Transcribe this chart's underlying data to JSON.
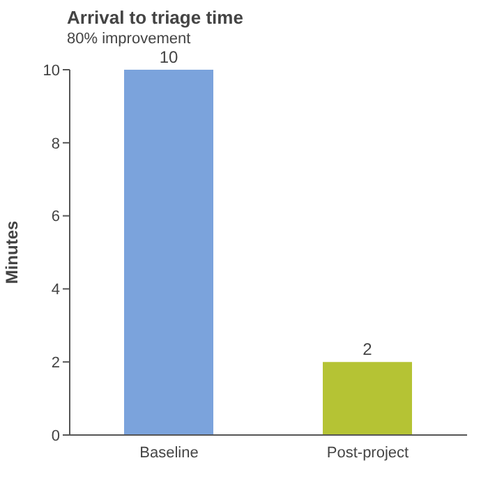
{
  "chart_data": {
    "type": "bar",
    "title": "Arrival to triage time",
    "subtitle": "80% improvement",
    "ylabel": "Minutes",
    "categories": [
      "Baseline",
      "Post-project"
    ],
    "values": [
      10,
      2
    ],
    "colors": [
      "#7ba3dc",
      "#b5c334"
    ],
    "ylim": [
      0,
      10
    ],
    "yticks": [
      0,
      2,
      4,
      6,
      8,
      10
    ],
    "grid": false,
    "data_labels": true,
    "legend": false
  }
}
